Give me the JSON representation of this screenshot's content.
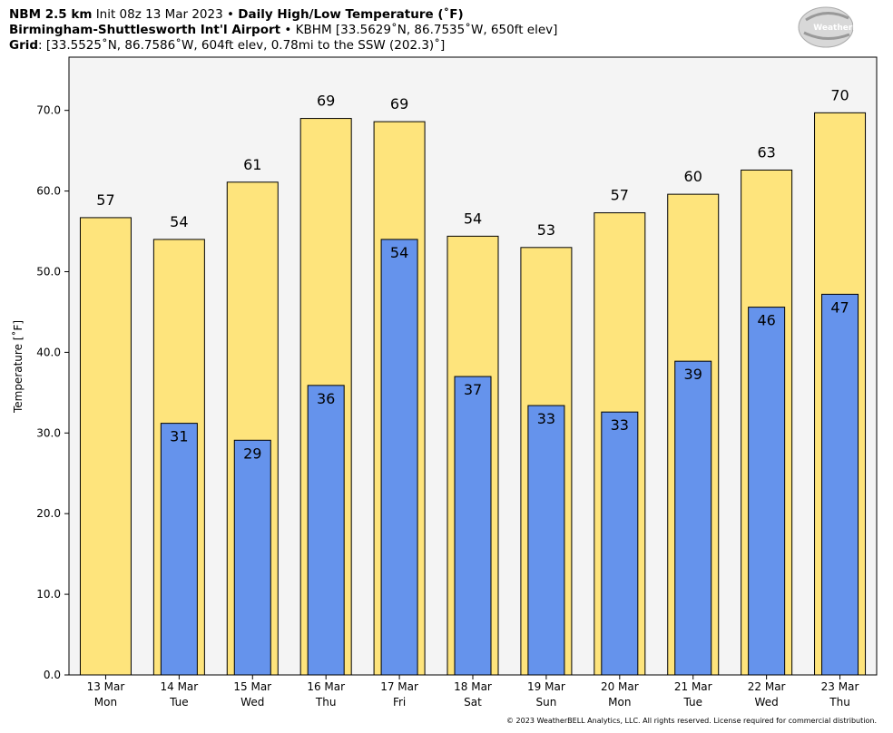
{
  "chart_data": {
    "type": "bar",
    "model": "NBM 2.5 km",
    "init": "Init 08z 13 Mar 2023",
    "separator": "•",
    "title": "Daily High/Low Temperature (˚F)",
    "station_name": "Birmingham-Shuttlesworth Int'l Airport",
    "station": "KBHM [33.5629˚N, 86.7535˚W, 650ft elev]",
    "grid_label": "Grid",
    "grid_info": ": [33.5525˚N, 86.7586˚W, 604ft elev, 0.78mi to the SSW (202.3)˚]",
    "logo": "WeatherBELL",
    "copyright": "© 2023 WeatherBELL Analytics, LLC. All rights reserved. License required for commercial distribution.",
    "y_label": "Temperature [˚F]",
    "categories": [
      "13 Mar",
      "14 Mar",
      "15 Mar",
      "16 Mar",
      "17 Mar",
      "18 Mar",
      "19 Mar",
      "20 Mar",
      "21 Mar",
      "22 Mar",
      "23 Mar"
    ],
    "category_days": [
      "Mon",
      "Tue",
      "Wed",
      "Thu",
      "Fri",
      "Sat",
      "Sun",
      "Mon",
      "Tue",
      "Wed",
      "Thu"
    ],
    "series": [
      {
        "name": "High",
        "color": "#fee47c",
        "values": [
          56.7,
          54.0,
          61.1,
          69.0,
          68.6,
          54.4,
          53.0,
          57.3,
          59.6,
          62.6,
          69.7
        ],
        "value_labels": [
          "57",
          "54",
          "61",
          "69",
          "69",
          "54",
          "53",
          "57",
          "60",
          "63",
          "70"
        ]
      },
      {
        "name": "Low",
        "color": "#6593ec",
        "values": [
          null,
          31.2,
          29.1,
          35.9,
          54.0,
          37.0,
          33.4,
          32.6,
          38.9,
          45.6,
          47.2
        ],
        "value_labels": [
          null,
          "31",
          "29",
          "36",
          "54",
          "37",
          "33",
          "33",
          "39",
          "46",
          "47"
        ]
      }
    ],
    "ylim": [
      0,
      76.6
    ],
    "yticks": [
      {
        "value": 0,
        "label": "0.0"
      },
      {
        "value": 10,
        "label": "10.0"
      },
      {
        "value": 20,
        "label": "20.0"
      },
      {
        "value": 30,
        "label": "30.0"
      },
      {
        "value": 40,
        "label": "40.0"
      },
      {
        "value": 50,
        "label": "50.0"
      },
      {
        "value": 60,
        "label": "60.0"
      },
      {
        "value": 70,
        "label": "70.0"
      }
    ]
  }
}
